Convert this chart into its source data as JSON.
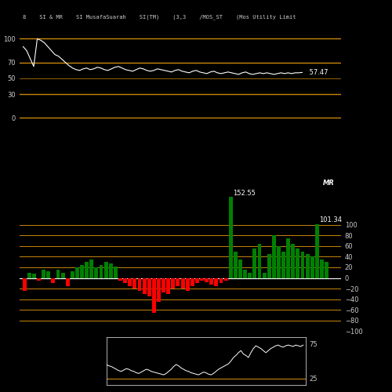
{
  "title_text": "8    SI & MR    SI MusafaSuarah    SI(TM)    (3,3    /MOS_ST    (Mos Utility Limit",
  "background_color": "#000000",
  "golden_line_color": "#C8860A",
  "white_line_color": "#FFFFFF",
  "green_bar_color": "#00CC00",
  "red_bar_color": "#CC0000",
  "rsi_hlines_gold": [
    100,
    70,
    30,
    0
  ],
  "rsi_hlines_thin": [
    50
  ],
  "rsi_yticks": [
    100,
    70,
    50,
    30,
    0
  ],
  "rsi_last_value": 57.47,
  "rsi_ylim": [
    -5,
    115
  ],
  "mrsi_hlines_gold": [
    100,
    80,
    60,
    40,
    20,
    -20,
    -40,
    -60,
    -80,
    -100
  ],
  "mrsi_yticks_right": [
    100,
    80,
    60,
    40,
    20,
    0,
    -20,
    -40,
    -60,
    -80,
    -100
  ],
  "mrsi_label_val1": 152.55,
  "mrsi_label_val2": 101.34,
  "mrsi_label": "MR",
  "mrsi_ylim": [
    -75,
    165
  ],
  "mini_ylim": [
    15,
    85
  ],
  "mini_golden_lines": [
    25
  ],
  "mini_yticks": [
    75,
    25
  ],
  "font_color": "#CCCCCC",
  "font_size": 6,
  "rsi_data": [
    90,
    85,
    75,
    65,
    100,
    98,
    95,
    90,
    85,
    80,
    78,
    74,
    70,
    66,
    63,
    61,
    60,
    62,
    63,
    61,
    62,
    64,
    63,
    61,
    60,
    62,
    64,
    65,
    63,
    61,
    60,
    59,
    61,
    63,
    62,
    60,
    59,
    60,
    62,
    61,
    60,
    59,
    58,
    60,
    61,
    59,
    58,
    57,
    59,
    60,
    58,
    57,
    56,
    58,
    59,
    57,
    56,
    57,
    58,
    57,
    56,
    55,
    57,
    58,
    56,
    55,
    56,
    57,
    56,
    57,
    56,
    55,
    56,
    57,
    56,
    57,
    56,
    57,
    57,
    57.47
  ],
  "mrsi_vals": [
    -25,
    10,
    8,
    -5,
    15,
    12,
    -10,
    15,
    10,
    -15,
    12,
    20,
    25,
    30,
    35,
    20,
    25,
    30,
    28,
    22,
    -5,
    -10,
    -15,
    -20,
    -25,
    -30,
    -35,
    -65,
    -45,
    -28,
    -30,
    -20,
    -15,
    -20,
    -25,
    -15,
    -10,
    -5,
    -8,
    -12,
    -15,
    -10,
    -5,
    152.55,
    50,
    35,
    15,
    10,
    55,
    65,
    10,
    45,
    80,
    60,
    50,
    75,
    65,
    55,
    50,
    45,
    40,
    101.34,
    35,
    30
  ],
  "mrsi_bar_colors": [
    "red",
    "green",
    "green",
    "red",
    "green",
    "green",
    "red",
    "green",
    "green",
    "red",
    "green",
    "green",
    "green",
    "green",
    "green",
    "green",
    "green",
    "green",
    "green",
    "green",
    "red",
    "red",
    "red",
    "red",
    "red",
    "red",
    "red",
    "red",
    "red",
    "red",
    "red",
    "red",
    "red",
    "red",
    "red",
    "red",
    "red",
    "red",
    "red",
    "red",
    "red",
    "red",
    "red",
    "green",
    "green",
    "green",
    "green",
    "green",
    "green",
    "green",
    "green",
    "green",
    "green",
    "green",
    "green",
    "green",
    "green",
    "green",
    "green",
    "green",
    "green",
    "green",
    "green",
    "green"
  ],
  "mini_data": [
    45,
    43,
    42,
    40,
    38,
    36,
    35,
    37,
    39,
    38,
    36,
    35,
    33,
    32,
    34,
    36,
    38,
    37,
    35,
    34,
    33,
    32,
    31,
    30,
    32,
    35,
    38,
    42,
    45,
    43,
    40,
    38,
    36,
    35,
    33,
    32,
    31,
    30,
    32,
    34,
    33,
    31,
    30,
    32,
    35,
    38,
    40,
    42,
    44,
    46,
    50,
    55,
    58,
    62,
    65,
    60,
    58,
    55,
    62,
    68,
    72,
    70,
    68,
    65,
    62,
    65,
    68,
    70,
    72,
    73,
    71,
    70,
    72,
    73,
    72,
    71,
    73,
    72,
    71,
    73
  ]
}
